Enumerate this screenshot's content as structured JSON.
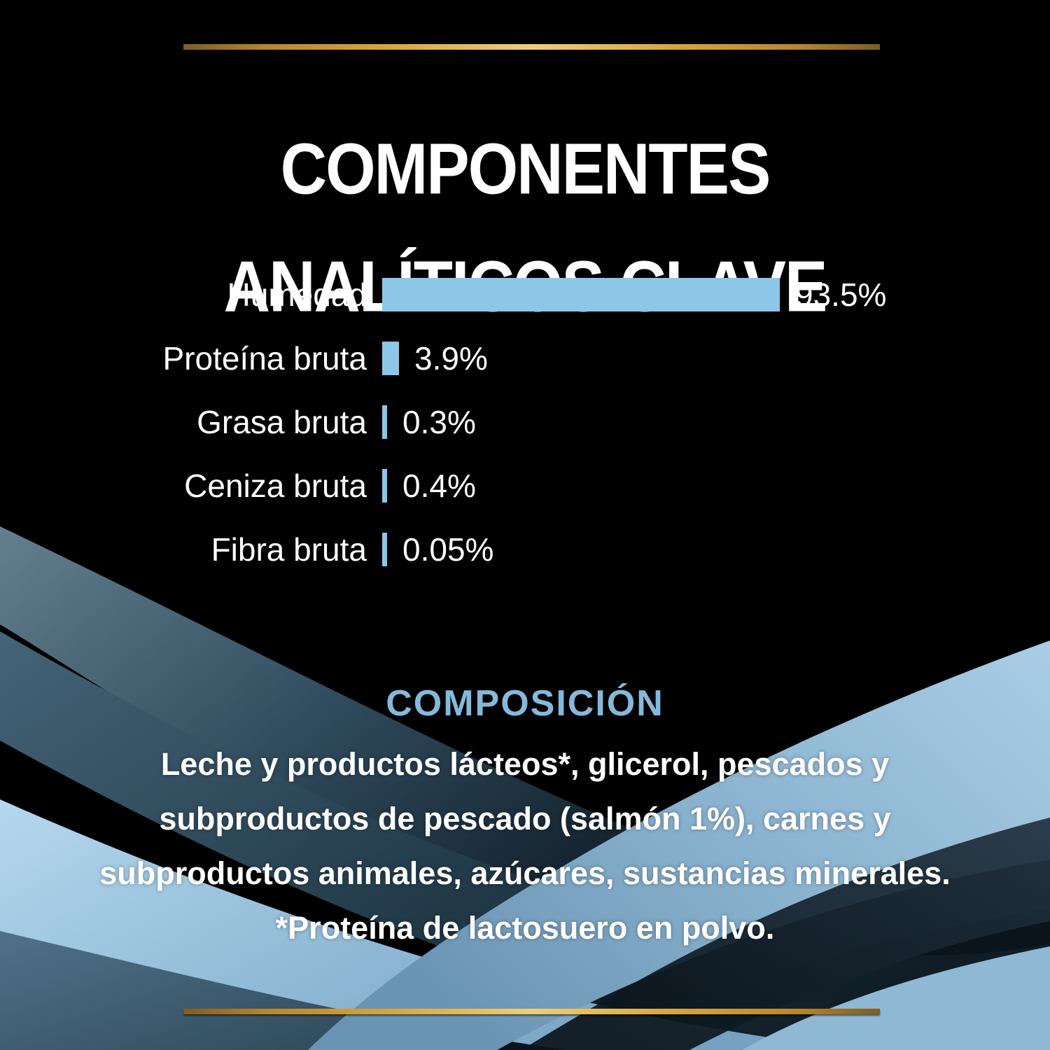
{
  "header": {
    "title_line1": "COMPONENTES",
    "title_line2": "ANALÍTICOS CLAVE"
  },
  "chart_data": {
    "type": "bar",
    "orientation": "horizontal",
    "title": "COMPONENTES ANALÍTICOS CLAVE",
    "categories": [
      "Humedad",
      "Proteína bruta",
      "Grasa bruta",
      "Ceniza bruta",
      "Fibra bruta"
    ],
    "values": [
      93.5,
      3.9,
      0.3,
      0.4,
      0.05
    ],
    "value_labels": [
      "93.5%",
      "3.9%",
      "0.3%",
      "0.4%",
      "0.05%"
    ],
    "unit": "%",
    "xlim": [
      0,
      100
    ],
    "bar_color": "#8cc7e8",
    "grid": false,
    "legend": false
  },
  "composition": {
    "heading": "COMPOSICIÓN",
    "heading_color": "#85b9dc",
    "lines": [
      "Leche y productos lácteos*, glicerol, pescados y",
      "subproductos de pescado (salmón 1%), carnes y",
      "subproductos animales, azúcares, sustancias minerales.",
      "*Proteína de lactosuero en polvo."
    ]
  },
  "decor": {
    "background_color": "#000000",
    "text_color": "#ffffff",
    "gold_line_color": "#d8a63f",
    "wave_blue_light": "#a9cde7",
    "wave_blue_mid": "#4f7089",
    "wave_blue_dark": "#16242e"
  }
}
